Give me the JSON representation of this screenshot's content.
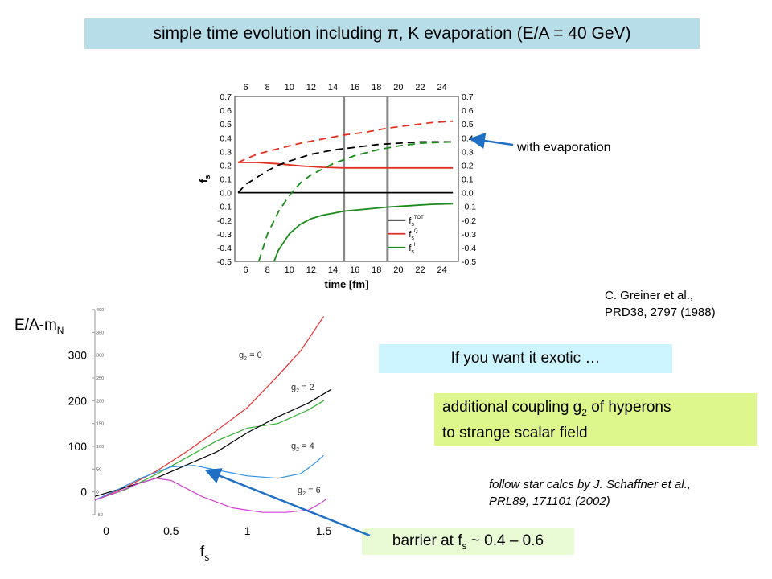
{
  "title": "simple time evolution including π, K evaporation  (E/A = 40 GeV)",
  "with_evaporation_label": "with evaporation",
  "citation": {
    "line1": "C. Greiner et al.,",
    "line2": "PRD38, 2797 (1988)"
  },
  "exotic_label": "If you want it exotic …",
  "coupling": {
    "line1_pre": "additional coupling  g",
    "line1_sub": "2",
    "line1_post": " of hyperons",
    "line2": "to strange scalar field"
  },
  "follow": {
    "line1": "follow star calcs by J. Schaffner et al.,",
    "line2": "PRL89, 171101 (2002)"
  },
  "barrier": {
    "pre": "barrier at f",
    "sub": "s",
    "post": " ~ 0.4 – 0.6"
  },
  "colors": {
    "title_bg": "#b6dde8",
    "exotic_bg": "#ccf5ff",
    "coupling_bg": "#ddf78c",
    "barrier_bg": "#e8fbd4",
    "arrow": "#1f6fc4"
  },
  "chart_data": [
    {
      "type": "line",
      "xlabel": "time [fm]",
      "ylabel": "f_s",
      "xlim": [
        5,
        25.5
      ],
      "ylim": [
        -0.5,
        0.7
      ],
      "x_ticks": [
        6,
        8,
        10,
        12,
        14,
        16,
        18,
        20,
        22,
        24
      ],
      "y_ticks": [
        0.7,
        0.6,
        0.5,
        0.4,
        0.3,
        0.2,
        0.1,
        0.0,
        -0.1,
        -0.2,
        -0.3,
        -0.4,
        -0.5
      ],
      "vertical_markers": [
        15,
        19
      ],
      "legend": [
        "f_s^TOT",
        "f_s^Q",
        "f_s^H"
      ],
      "legend_position": "bottom-right",
      "series": [
        {
          "name": "f_s^TOT",
          "color": "#000000",
          "dash": false,
          "x": [
            5.3,
            25
          ],
          "y": [
            0.0,
            0.0
          ]
        },
        {
          "name": "f_s^Q",
          "color": "#e03020",
          "dash": false,
          "x": [
            5.3,
            7,
            9,
            11,
            13,
            15,
            17,
            19,
            21,
            23,
            25
          ],
          "y": [
            0.22,
            0.22,
            0.21,
            0.195,
            0.185,
            0.18,
            0.18,
            0.18,
            0.18,
            0.18,
            0.18
          ]
        },
        {
          "name": "f_s^H",
          "color": "#1a8a1a",
          "dash": false,
          "x": [
            8.6,
            9,
            10,
            11,
            12,
            13,
            14,
            15,
            17,
            19,
            21,
            23,
            25
          ],
          "y": [
            -0.5,
            -0.42,
            -0.3,
            -0.23,
            -0.19,
            -0.165,
            -0.15,
            -0.135,
            -0.12,
            -0.105,
            -0.095,
            -0.085,
            -0.08
          ]
        },
        {
          "name": "f_s^Q",
          "color": "#e03020",
          "dash": true,
          "x": [
            5.3,
            7,
            9,
            11,
            13,
            15,
            17,
            19,
            21,
            23,
            25
          ],
          "y": [
            0.22,
            0.28,
            0.32,
            0.36,
            0.39,
            0.42,
            0.44,
            0.47,
            0.49,
            0.51,
            0.52
          ]
        },
        {
          "name": "f_s^TOT",
          "color": "#000000",
          "dash": true,
          "x": [
            5.3,
            6,
            7,
            8,
            9,
            10,
            12,
            14,
            16,
            18,
            20,
            22,
            25
          ],
          "y": [
            0.0,
            0.06,
            0.11,
            0.16,
            0.2,
            0.23,
            0.28,
            0.31,
            0.33,
            0.35,
            0.36,
            0.37,
            0.37
          ]
        },
        {
          "name": "f_s^H",
          "color": "#1a8a1a",
          "dash": true,
          "x": [
            7.2,
            8,
            9,
            10,
            11,
            12,
            14,
            16,
            18,
            20,
            22,
            25
          ],
          "y": [
            -0.5,
            -0.3,
            -0.14,
            -0.02,
            0.07,
            0.13,
            0.21,
            0.27,
            0.31,
            0.34,
            0.36,
            0.37
          ]
        }
      ]
    },
    {
      "type": "line",
      "xlabel": "f_s",
      "ylabel": "E/A-m_N",
      "x_ticks": [
        "0",
        "0.5",
        "1",
        "1.5"
      ],
      "y_ticks": [
        "0",
        "100",
        "200",
        "300"
      ],
      "small_y_ticks": [
        "-50",
        "0",
        "50",
        "100",
        "150",
        "200",
        "250",
        "300",
        "350",
        "400"
      ],
      "xlim": [
        0,
        1.55
      ],
      "ylim": [
        -50,
        400
      ],
      "series": [
        {
          "name": "g_2 = 0",
          "color": "#e83030",
          "x": [
            0,
            0.2,
            0.4,
            0.6,
            0.8,
            1.0,
            1.2,
            1.35,
            1.45,
            1.5
          ],
          "y": [
            -18,
            10,
            45,
            88,
            135,
            185,
            255,
            310,
            360,
            385
          ]
        },
        {
          "name": "g_2 = 2",
          "color": "#30b030",
          "x": [
            0,
            0.2,
            0.4,
            0.6,
            0.8,
            1.0,
            1.2,
            1.4,
            1.5
          ],
          "y": [
            -18,
            5,
            38,
            75,
            112,
            140,
            150,
            180,
            200
          ]
        },
        {
          "name": "",
          "color": "#000000",
          "x": [
            0,
            0.4,
            0.8,
            1.0,
            1.2,
            1.4,
            1.55
          ],
          "y": [
            -10,
            30,
            88,
            130,
            165,
            195,
            225
          ]
        },
        {
          "name": "g_2 = 4",
          "color": "#3090e0",
          "x": [
            0,
            0.15,
            0.3,
            0.5,
            0.65,
            0.8,
            1.0,
            1.2,
            1.35,
            1.45,
            1.5
          ],
          "y": [
            -18,
            5,
            30,
            55,
            58,
            48,
            35,
            30,
            40,
            65,
            80
          ]
        },
        {
          "name": "g_2 = 6",
          "color": "#d040d0",
          "x": [
            0,
            0.15,
            0.3,
            0.4,
            0.5,
            0.7,
            0.9,
            1.1,
            1.25,
            1.4,
            1.48,
            1.52
          ],
          "y": [
            -18,
            0,
            20,
            30,
            25,
            -10,
            -35,
            -45,
            -45,
            -40,
            -25,
            -15
          ]
        }
      ],
      "labels": [
        {
          "pre": "g",
          "sub": "2",
          "post": " = 0"
        },
        {
          "pre": "g",
          "sub": "2",
          "post": " = 2"
        },
        {
          "pre": "g",
          "sub": "2",
          "post": " = 4"
        },
        {
          "pre": "g",
          "sub": "2",
          "post": " = 6"
        }
      ]
    }
  ]
}
